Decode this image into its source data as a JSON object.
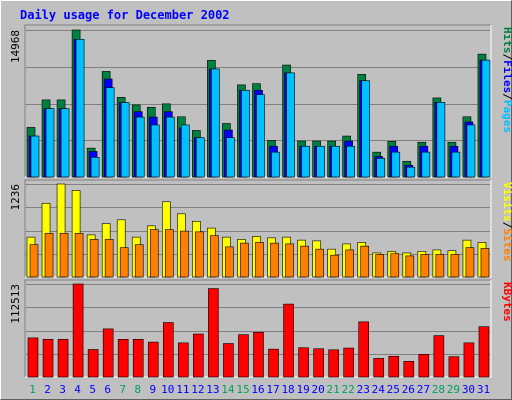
{
  "chart_data": {
    "type": "bar",
    "title": "Daily usage for December 2002",
    "days": [
      "1",
      "2",
      "3",
      "4",
      "5",
      "6",
      "7",
      "8",
      "9",
      "10",
      "11",
      "12",
      "13",
      "14",
      "15",
      "16",
      "17",
      "18",
      "19",
      "20",
      "21",
      "22",
      "23",
      "24",
      "25",
      "26",
      "27",
      "28",
      "29",
      "30",
      "31"
    ],
    "weekend_days": [
      "1",
      "7",
      "8",
      "14",
      "15",
      "21",
      "22",
      "28",
      "29"
    ],
    "panels": [
      {
        "name": "top",
        "ymax_label": "14968",
        "ylim": [
          0,
          14968
        ],
        "series": [
          {
            "name": "Hits",
            "color": "#008040",
            "values": [
              5050,
              7850,
              7850,
              14968,
              2940,
              10750,
              8110,
              7340,
              7100,
              7450,
              6130,
              4740,
              11880,
              5450,
              9380,
              9500,
              3720,
              11400,
              3660,
              3660,
              3660,
              4170,
              10450,
              2530,
              3630,
              1600,
              3540,
              8050,
              3540,
              6130,
              12510
            ]
          },
          {
            "name": "Files",
            "color": "#0000ff",
            "values": [
              4170,
              6960,
              6960,
              14020,
              2600,
              9980,
              7580,
              6650,
              6100,
              6650,
              5000,
              4000,
              11000,
              4780,
              8830,
              8830,
              3130,
              10600,
              3130,
              3130,
              3130,
              3660,
              9800,
              2080,
              3130,
              1200,
              3130,
              7600,
              3130,
              5600,
              11900
            ]
          },
          {
            "name": "Pages",
            "color": "#00c0ff",
            "values": [
              4170,
              6960,
              6960,
              14020,
              2000,
              9100,
              7580,
              6100,
              5300,
              6100,
              5300,
              4000,
              11000,
              4000,
              8830,
              8380,
              2530,
              10600,
              3130,
              3130,
              3130,
              3130,
              9800,
              1900,
              2530,
              1000,
              2530,
              7600,
              2530,
              5300,
              11900
            ]
          }
        ]
      },
      {
        "name": "middle",
        "ymax_label": "1236",
        "ylim": [
          0,
          1236
        ],
        "series": [
          {
            "name": "Visits",
            "color": "#ffff00",
            "values": [
              530,
              980,
              1236,
              1150,
              560,
              710,
              760,
              530,
              680,
              1000,
              840,
              740,
              650,
              530,
              500,
              540,
              520,
              530,
              490,
              480,
              370,
              440,
              460,
              320,
              340,
              320,
              340,
              360,
              350,
              490,
              460
            ]
          },
          {
            "name": "Sites",
            "color": "#ff8000",
            "values": [
              430,
              580,
              580,
              580,
              500,
              500,
              390,
              430,
              630,
              630,
              610,
              600,
              550,
              400,
              450,
              460,
              450,
              440,
              410,
              370,
              290,
              360,
              410,
              300,
              310,
              280,
              300,
              300,
              300,
              390,
              380
            ]
          }
        ]
      },
      {
        "name": "bottom",
        "ymax_label": "112513",
        "ylim": [
          0,
          112513
        ],
        "series": [
          {
            "name": "KBytes",
            "color": "#ff0000",
            "values": [
              47300,
              45600,
              45600,
              112513,
              33300,
              58200,
              45600,
              45600,
              42200,
              65900,
              41300,
              52000,
              107000,
              40500,
              51200,
              54100,
              33700,
              88200,
              35400,
              34200,
              32900,
              35000,
              66700,
              22500,
              25100,
              19000,
              27500,
              50100,
              24600,
              41300,
              60900
            ]
          }
        ]
      }
    ],
    "legend": [
      {
        "panel": "top",
        "entries": [
          {
            "text": "Pages",
            "color": "#00c0ff"
          },
          {
            "text": "/",
            "color": "#000000"
          },
          {
            "text": "Files",
            "color": "#0000ff"
          },
          {
            "text": "/",
            "color": "#000000"
          },
          {
            "text": "Hits",
            "color": "#008040"
          }
        ]
      },
      {
        "panel": "middle",
        "entries": [
          {
            "text": "Sites",
            "color": "#ff8000"
          },
          {
            "text": "/",
            "color": "#000000"
          },
          {
            "text": "Visits",
            "color": "#ffff00"
          }
        ]
      },
      {
        "panel": "bottom",
        "entries": [
          {
            "text": "KBytes",
            "color": "#ff0000"
          }
        ]
      }
    ],
    "colors": {
      "background": "#c0c0c0",
      "title": "#0000ff",
      "weekday_label": "#0000ff",
      "weekend_label": "#00a060",
      "grid": "#808080"
    }
  }
}
